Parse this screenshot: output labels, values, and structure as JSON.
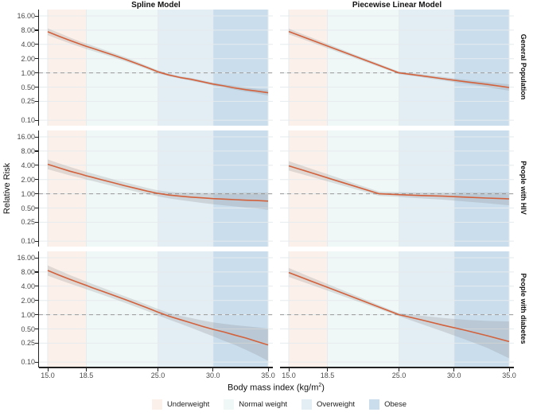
{
  "chart_data": {
    "type": "line",
    "description": "Relative risk vs body mass index, faceted: columns are model types, rows are populations; log-scaled y axis; shaded BMI category bands; orange fitted curve with grey confidence band; dashed reference line at RR = 1.",
    "facets": {
      "cols": [
        "Spline Model",
        "Piecewise Linear Model"
      ],
      "rows": [
        "General Population",
        "People with HIV",
        "People with diabetes"
      ]
    },
    "x_axis": {
      "label_prefix": "Body mass index (kg/m",
      "label_sup": "2",
      "label_suffix": ")",
      "values": [
        15,
        18.5,
        25,
        30,
        35
      ],
      "labels": [
        "15.0",
        "18.5",
        "25.0",
        "30.0",
        "35.0"
      ],
      "range": [
        14.2,
        35.5
      ]
    },
    "y_axis": {
      "label": "Relative Risk",
      "scale": "log2",
      "values": [
        16,
        8,
        4,
        2,
        1,
        0.5,
        0.25,
        0.1
      ],
      "labels": [
        "16.00",
        "8.00",
        "4.00",
        "2.00",
        "1.00",
        "0.50",
        "0.25",
        "0.10"
      ],
      "range": [
        0.08,
        21.7
      ]
    },
    "ref_line": 1.0,
    "grid_on": true,
    "legend_position": "bottom",
    "bands": [
      {
        "name": "Underweight",
        "from": 15,
        "to": 18.5,
        "color": "#fcf0ea"
      },
      {
        "name": "Normal weight",
        "from": 18.5,
        "to": 25,
        "color": "#f0f7f7"
      },
      {
        "name": "Overweight",
        "from": 25,
        "to": 30,
        "color": "#e2edf4"
      },
      {
        "name": "Obese",
        "from": 30,
        "to": 35,
        "color": "#c9ddec"
      }
    ],
    "colors": {
      "line": "#d2613c",
      "ci": "#8a8a8a",
      "grid": "#e6ebee",
      "ref": "#999999",
      "axis": "#222222"
    },
    "panels": [
      {
        "id": "spline-general",
        "row": 0,
        "col": 0,
        "model": "Spline Model",
        "population": "General Population",
        "x": [
          15,
          16,
          17,
          18,
          18.5,
          19,
          20,
          21,
          22,
          23,
          24,
          25,
          26,
          27,
          28,
          29,
          30,
          31,
          32,
          33,
          34,
          35
        ],
        "y": [
          7.4,
          5.95,
          4.85,
          4.0,
          3.65,
          3.35,
          2.8,
          2.35,
          1.95,
          1.6,
          1.3,
          1.05,
          0.9,
          0.8,
          0.73,
          0.65,
          0.58,
          0.53,
          0.48,
          0.44,
          0.41,
          0.38
        ],
        "ci_lo": [
          6.3,
          5.1,
          4.2,
          3.5,
          3.2,
          2.95,
          2.5,
          2.1,
          1.76,
          1.46,
          1.2,
          0.97,
          0.85,
          0.76,
          0.68,
          0.61,
          0.54,
          0.49,
          0.44,
          0.4,
          0.37,
          0.33
        ],
        "ci_hi": [
          8.7,
          7.0,
          5.6,
          4.55,
          4.15,
          3.8,
          3.15,
          2.62,
          2.16,
          1.76,
          1.41,
          1.13,
          0.96,
          0.85,
          0.78,
          0.7,
          0.62,
          0.57,
          0.53,
          0.49,
          0.46,
          0.44
        ]
      },
      {
        "id": "piecewise-general",
        "row": 0,
        "col": 1,
        "model": "Piecewise Linear Model",
        "population": "General Population",
        "x": [
          15,
          17,
          19,
          21,
          23,
          25,
          27,
          29,
          31,
          33,
          35
        ],
        "y": [
          7.5,
          5.0,
          3.35,
          2.24,
          1.5,
          1.0,
          0.87,
          0.75,
          0.65,
          0.57,
          0.49
        ],
        "ci_lo": [
          6.55,
          4.45,
          3.02,
          2.05,
          1.39,
          0.94,
          0.81,
          0.69,
          0.59,
          0.5,
          0.42
        ],
        "ci_hi": [
          8.6,
          5.64,
          3.72,
          2.44,
          1.62,
          1.07,
          0.94,
          0.82,
          0.72,
          0.64,
          0.57
        ]
      },
      {
        "id": "spline-hiv",
        "row": 1,
        "col": 0,
        "model": "Spline Model",
        "population": "People with HIV",
        "x": [
          15,
          16,
          17,
          18,
          18.5,
          19,
          20,
          21,
          22,
          23,
          24,
          25,
          26,
          27,
          28,
          29,
          30,
          31,
          32,
          33,
          34,
          35
        ],
        "y": [
          4.2,
          3.55,
          3.0,
          2.6,
          2.4,
          2.25,
          1.95,
          1.7,
          1.48,
          1.3,
          1.14,
          1.02,
          0.94,
          0.89,
          0.85,
          0.82,
          0.79,
          0.77,
          0.75,
          0.73,
          0.72,
          0.7
        ],
        "ci_lo": [
          3.3,
          2.85,
          2.45,
          2.15,
          2.0,
          1.88,
          1.64,
          1.44,
          1.26,
          1.11,
          0.98,
          0.88,
          0.8,
          0.74,
          0.69,
          0.64,
          0.6,
          0.57,
          0.54,
          0.51,
          0.49,
          0.46
        ],
        "ci_hi": [
          5.3,
          4.4,
          3.7,
          3.15,
          2.9,
          2.7,
          2.32,
          2.0,
          1.74,
          1.52,
          1.33,
          1.18,
          1.1,
          1.06,
          1.05,
          1.04,
          1.04,
          1.04,
          1.04,
          1.05,
          1.05,
          1.06
        ]
      },
      {
        "id": "piecewise-hiv",
        "row": 1,
        "col": 1,
        "model": "Piecewise Linear Model",
        "population": "People with HIV",
        "x": [
          15,
          17,
          19,
          21,
          23.2,
          25,
          27,
          29,
          31,
          33,
          35
        ],
        "y": [
          3.9,
          2.8,
          2.0,
          1.44,
          1.0,
          0.96,
          0.92,
          0.89,
          0.85,
          0.81,
          0.78
        ],
        "ci_lo": [
          3.1,
          2.3,
          1.7,
          1.26,
          0.9,
          0.86,
          0.8,
          0.75,
          0.69,
          0.63,
          0.57
        ],
        "ci_hi": [
          4.9,
          3.4,
          2.37,
          1.64,
          1.11,
          1.08,
          1.06,
          1.05,
          1.05,
          1.06,
          1.07
        ]
      },
      {
        "id": "spline-diabetes",
        "row": 2,
        "col": 0,
        "model": "Spline Model",
        "population": "People with diabetes",
        "x": [
          15,
          16,
          17,
          18,
          18.5,
          19,
          20,
          21,
          22,
          23,
          24,
          25,
          26,
          27,
          28,
          29,
          30,
          31,
          32,
          33,
          34,
          35
        ],
        "y": [
          8.6,
          6.9,
          5.6,
          4.6,
          4.15,
          3.75,
          3.1,
          2.55,
          2.1,
          1.72,
          1.4,
          1.13,
          0.93,
          0.79,
          0.67,
          0.57,
          0.49,
          0.43,
          0.37,
          0.32,
          0.27,
          0.23
        ],
        "ci_lo": [
          6.7,
          5.5,
          4.55,
          3.8,
          3.45,
          3.15,
          2.62,
          2.17,
          1.79,
          1.47,
          1.2,
          0.97,
          0.79,
          0.65,
          0.53,
          0.43,
          0.35,
          0.28,
          0.23,
          0.18,
          0.14,
          0.105
        ],
        "ci_hi": [
          11.0,
          8.7,
          6.9,
          5.6,
          5.0,
          4.5,
          3.67,
          2.99,
          2.45,
          2.01,
          1.63,
          1.32,
          1.09,
          0.95,
          0.85,
          0.76,
          0.69,
          0.64,
          0.6,
          0.57,
          0.54,
          0.51
        ]
      },
      {
        "id": "piecewise-diabetes",
        "row": 2,
        "col": 1,
        "model": "Piecewise Linear Model",
        "population": "People with diabetes",
        "x": [
          15,
          17,
          19,
          21,
          23,
          25,
          27,
          29,
          31,
          33,
          35
        ],
        "y": [
          7.8,
          5.17,
          3.43,
          2.27,
          1.51,
          1.0,
          0.78,
          0.6,
          0.47,
          0.36,
          0.27
        ],
        "ci_lo": [
          6.3,
          4.3,
          2.95,
          2.0,
          1.37,
          0.93,
          0.64,
          0.44,
          0.3,
          0.2,
          0.12
        ],
        "ci_hi": [
          9.7,
          6.2,
          4.0,
          2.58,
          1.66,
          1.08,
          0.95,
          0.85,
          0.78,
          0.74,
          0.72
        ]
      }
    ]
  }
}
